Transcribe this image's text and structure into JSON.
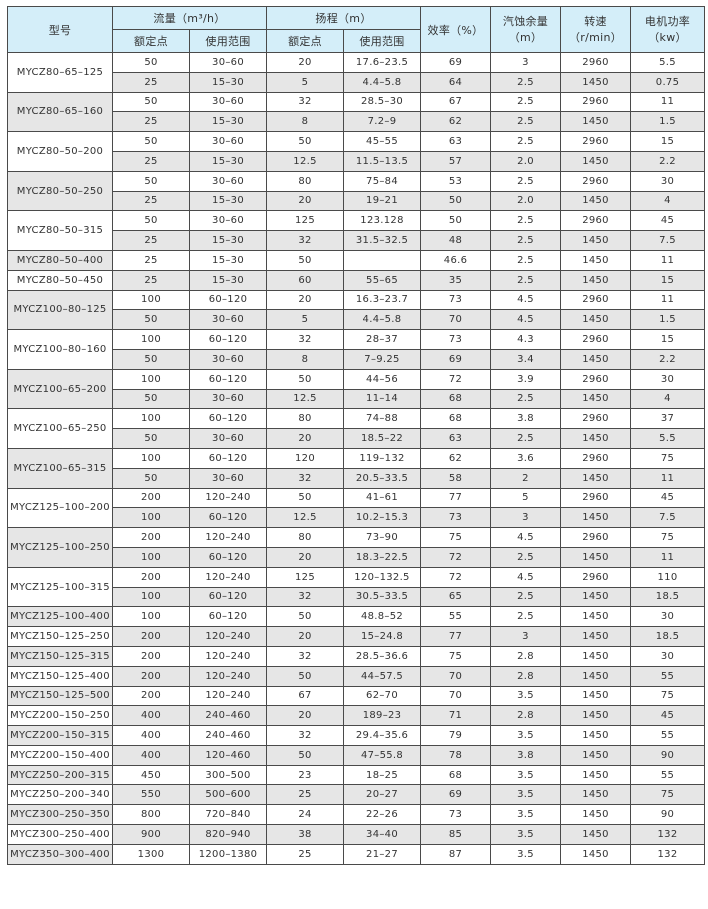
{
  "header": {
    "model": "型号",
    "flow": "流量（m³/h）",
    "head": "扬程（m）",
    "rated": "额定点",
    "range": "使用范围",
    "efficiency": "效率（%）",
    "npsh_1": "汽蚀余量",
    "npsh_2": "（m）",
    "speed_1": "转速",
    "speed_2": "（r/min）",
    "power_1": "电机功率",
    "power_2": "（kw）"
  },
  "colors": {
    "header_bg": "#d4eef9",
    "shade": "#e6e6e6"
  },
  "groups": [
    {
      "model": "MYCZ80–65–125",
      "rows": [
        [
          "50",
          "30–60",
          "20",
          "17.6–23.5",
          "69",
          "3",
          "2960",
          "5.5"
        ],
        [
          "25",
          "15–30",
          "5",
          "4.4–5.8",
          "64",
          "2.5",
          "1450",
          "0.75"
        ]
      ]
    },
    {
      "model": "MYCZ80–65–160",
      "rows": [
        [
          "50",
          "30–60",
          "32",
          "28.5–30",
          "67",
          "2.5",
          "2960",
          "11"
        ],
        [
          "25",
          "15–30",
          "8",
          "7.2–9",
          "62",
          "2.5",
          "1450",
          "1.5"
        ]
      ]
    },
    {
      "model": "MYCZ80–50–200",
      "rows": [
        [
          "50",
          "30–60",
          "50",
          "45–55",
          "63",
          "2.5",
          "2960",
          "15"
        ],
        [
          "25",
          "15–30",
          "12.5",
          "11.5–13.5",
          "57",
          "2.0",
          "1450",
          "2.2"
        ]
      ]
    },
    {
      "model": "MYCZ80–50–250",
      "rows": [
        [
          "50",
          "30–60",
          "80",
          "75–84",
          "53",
          "2.5",
          "2960",
          "30"
        ],
        [
          "25",
          "15–30",
          "20",
          "19–21",
          "50",
          "2.0",
          "1450",
          "4"
        ]
      ]
    },
    {
      "model": "MYCZ80–50–315",
      "rows": [
        [
          "50",
          "30–60",
          "125",
          "123.128",
          "50",
          "2.5",
          "2960",
          "45"
        ],
        [
          "25",
          "15–30",
          "32",
          "31.5–32.5",
          "48",
          "2.5",
          "1450",
          "7.5"
        ]
      ]
    },
    {
      "model": "MYCZ80–50–400",
      "rows": [
        [
          "25",
          "15–30",
          "50",
          "",
          "46.6",
          "2.5",
          "1450",
          "11"
        ]
      ]
    },
    {
      "model": "MYCZ80–50–450",
      "rows": [
        [
          "25",
          "15–30",
          "60",
          "55–65",
          "35",
          "2.5",
          "1450",
          "15"
        ]
      ]
    },
    {
      "model": "MYCZ100–80–125",
      "rows": [
        [
          "100",
          "60–120",
          "20",
          "16.3–23.7",
          "73",
          "4.5",
          "2960",
          "11"
        ],
        [
          "50",
          "30–60",
          "5",
          "4.4–5.8",
          "70",
          "4.5",
          "1450",
          "1.5"
        ]
      ]
    },
    {
      "model": "MYCZ100–80–160",
      "rows": [
        [
          "100",
          "60–120",
          "32",
          "28–37",
          "73",
          "4.3",
          "2960",
          "15"
        ],
        [
          "50",
          "30–60",
          "8",
          "7–9.25",
          "69",
          "3.4",
          "1450",
          "2.2"
        ]
      ]
    },
    {
      "model": "MYCZ100–65–200",
      "rows": [
        [
          "100",
          "60–120",
          "50",
          "44–56",
          "72",
          "3.9",
          "2960",
          "30"
        ],
        [
          "50",
          "30–60",
          "12.5",
          "11–14",
          "68",
          "2.5",
          "1450",
          "4"
        ]
      ]
    },
    {
      "model": "MYCZ100–65–250",
      "rows": [
        [
          "100",
          "60–120",
          "80",
          "74–88",
          "68",
          "3.8",
          "2960",
          "37"
        ],
        [
          "50",
          "30–60",
          "20",
          "18.5–22",
          "63",
          "2.5",
          "1450",
          "5.5"
        ]
      ]
    },
    {
      "model": "MYCZ100–65–315",
      "rows": [
        [
          "100",
          "60–120",
          "120",
          "119–132",
          "62",
          "3.6",
          "2960",
          "75"
        ],
        [
          "50",
          "30–60",
          "32",
          "20.5–33.5",
          "58",
          "2",
          "1450",
          "11"
        ]
      ]
    },
    {
      "model": "MYCZ125–100–200",
      "rows": [
        [
          "200",
          "120–240",
          "50",
          "41–61",
          "77",
          "5",
          "2960",
          "45"
        ],
        [
          "100",
          "60–120",
          "12.5",
          "10.2–15.3",
          "73",
          "3",
          "1450",
          "7.5"
        ]
      ]
    },
    {
      "model": "MYCZ125–100–250",
      "rows": [
        [
          "200",
          "120–240",
          "80",
          "73–90",
          "75",
          "4.5",
          "2960",
          "75"
        ],
        [
          "100",
          "60–120",
          "20",
          "18.3–22.5",
          "72",
          "2.5",
          "1450",
          "11"
        ]
      ]
    },
    {
      "model": "MYCZ125–100–315",
      "rows": [
        [
          "200",
          "120–240",
          "125",
          "120–132.5",
          "72",
          "4.5",
          "2960",
          "110"
        ],
        [
          "100",
          "60–120",
          "32",
          "30.5–33.5",
          "65",
          "2.5",
          "1450",
          "18.5"
        ]
      ]
    },
    {
      "model": "MYCZ125–100–400",
      "rows": [
        [
          "100",
          "60–120",
          "50",
          "48.8–52",
          "55",
          "2.5",
          "1450",
          "30"
        ]
      ]
    },
    {
      "model": "MYCZ150–125–250",
      "rows": [
        [
          "200",
          "120–240",
          "20",
          "15–24.8",
          "77",
          "3",
          "1450",
          "18.5"
        ]
      ]
    },
    {
      "model": "MYCZ150–125–315",
      "rows": [
        [
          "200",
          "120–240",
          "32",
          "28.5–36.6",
          "75",
          "2.8",
          "1450",
          "30"
        ]
      ]
    },
    {
      "model": "MYCZ150–125–400",
      "rows": [
        [
          "200",
          "120–240",
          "50",
          "44–57.5",
          "70",
          "2.8",
          "1450",
          "55"
        ]
      ]
    },
    {
      "model": "MYCZ150–125–500",
      "rows": [
        [
          "200",
          "120–240",
          "67",
          "62–70",
          "70",
          "3.5",
          "1450",
          "75"
        ]
      ]
    },
    {
      "model": "MYCZ200–150–250",
      "rows": [
        [
          "400",
          "240–460",
          "20",
          "189–23",
          "71",
          "2.8",
          "1450",
          "45"
        ]
      ]
    },
    {
      "model": "MYCZ200–150–315",
      "rows": [
        [
          "400",
          "240–460",
          "32",
          "29.4–35.6",
          "79",
          "3.5",
          "1450",
          "55"
        ]
      ]
    },
    {
      "model": "MYCZ200–150–400",
      "rows": [
        [
          "400",
          "120–460",
          "50",
          "47–55.8",
          "78",
          "3.8",
          "1450",
          "90"
        ]
      ]
    },
    {
      "model": "MYCZ250–200–315",
      "rows": [
        [
          "450",
          "300–500",
          "23",
          "18–25",
          "68",
          "3.5",
          "1450",
          "55"
        ]
      ]
    },
    {
      "model": "MYCZ250–200–340",
      "rows": [
        [
          "550",
          "500–600",
          "25",
          "20–27",
          "69",
          "3.5",
          "1450",
          "75"
        ]
      ]
    },
    {
      "model": "MYCZ300–250–350",
      "rows": [
        [
          "800",
          "720–840",
          "24",
          "22–26",
          "73",
          "3.5",
          "1450",
          "90"
        ]
      ]
    },
    {
      "model": "MYCZ300–250–400",
      "rows": [
        [
          "900",
          "820–940",
          "38",
          "34–40",
          "85",
          "3.5",
          "1450",
          "132"
        ]
      ]
    },
    {
      "model": "MYCZ350–300–400",
      "rows": [
        [
          "1300",
          "1200–1380",
          "25",
          "21–27",
          "87",
          "3.5",
          "1450",
          "132"
        ]
      ]
    }
  ]
}
